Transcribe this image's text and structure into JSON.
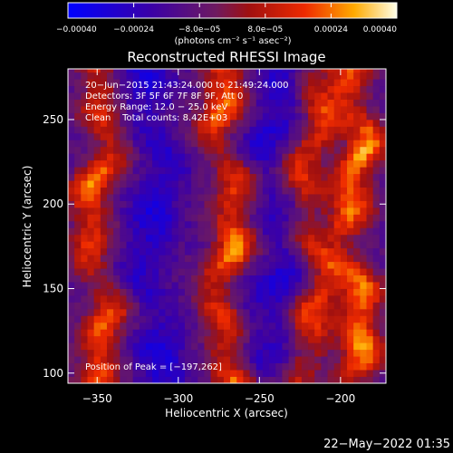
{
  "chart_data": {
    "type": "heatmap",
    "title": "Reconstructed RHESSI Image",
    "xlabel": "Heliocentric X (arcsec)",
    "ylabel": "Heliocentric Y (arcsec)",
    "xlim": [
      -368,
      -172
    ],
    "ylim": [
      94,
      280
    ],
    "x_ticks": [
      -350,
      -300,
      -250,
      -200
    ],
    "y_ticks": [
      100,
      150,
      200,
      250
    ],
    "x_tick_labels": [
      "−350",
      "−300",
      "−250",
      "−200"
    ],
    "y_tick_labels": [
      "100",
      "150",
      "200",
      "250"
    ],
    "colorbar": {
      "range": [
        -0.0004,
        0.0004
      ],
      "tick_values": [
        -0.0004,
        -0.00024,
        -8e-05,
        8e-05,
        0.00024,
        0.0004
      ],
      "tick_labels": [
        "−0.00040",
        "−0.00024",
        "−8.0e−05",
        "8.0e−05",
        "0.00024",
        "0.00040"
      ],
      "unit_label": "(photons cm⁻² s⁻¹ asec⁻²)"
    },
    "info_lines": [
      "20−Jun−2015 21:43:24.000 to 21:49:24.000",
      "Detectors: 3F 5F 6F 7F 8F 9F, Att 0",
      "Energy Range: 12.0 − 25.0 keV",
      "Clean    Total counts: 8.42E+03"
    ],
    "peak_text": "Position of Peak = [−197,262]",
    "peak_position": [
      -197,
      262
    ],
    "stripes": [
      {
        "type": "bright",
        "x_center": -350,
        "amplitude": 0.00034
      },
      {
        "type": "dark",
        "x_center": -315,
        "amplitude": -0.00018
      },
      {
        "type": "bright",
        "x_center": -270,
        "amplitude": 0.00036
      },
      {
        "type": "dark",
        "x_center": -240,
        "amplitude": -0.00016
      },
      {
        "type": "bright",
        "x_center": -218,
        "amplitude": 0.0003
      },
      {
        "type": "bright",
        "x_center": -192,
        "amplitude": 0.0004
      }
    ]
  },
  "timestamp": "22−May−2022 01:35"
}
